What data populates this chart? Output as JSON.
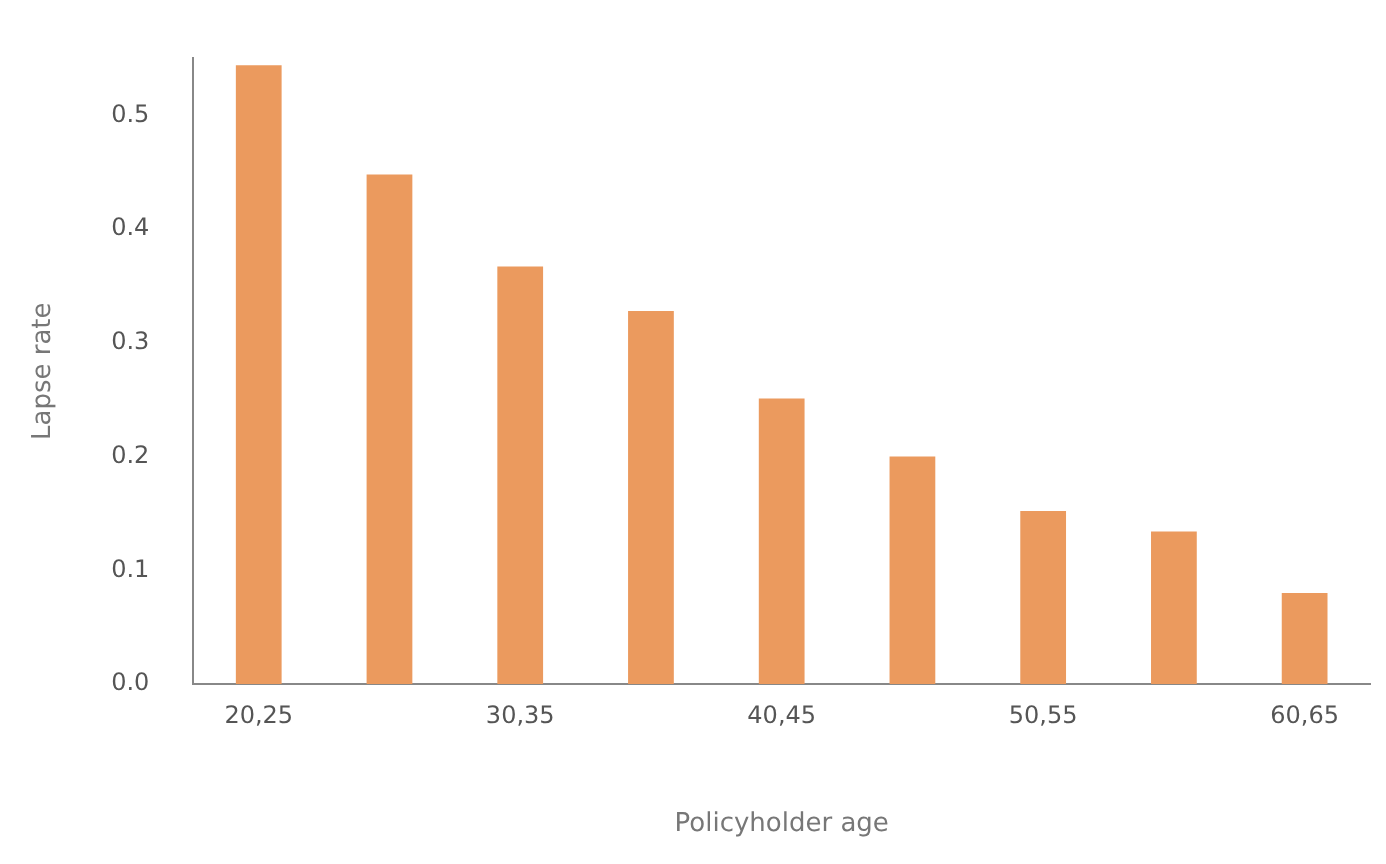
{
  "chart_data": {
    "type": "bar",
    "xlabel": "Policyholder age",
    "ylabel": "Lapse rate",
    "categories": [
      "20,25",
      null,
      "30,35",
      null,
      "40,45",
      null,
      "50,55",
      null,
      "60,65"
    ],
    "values": [
      0.544,
      0.448,
      0.367,
      0.328,
      0.251,
      0.2,
      0.152,
      0.134,
      0.08
    ],
    "color": "#eb9a5e",
    "ylim": [
      0,
      0.55
    ],
    "yticks": [
      {
        "value": 0,
        "label": "0.0"
      },
      0.1,
      0.2,
      0.3,
      0.4,
      0.5
    ],
    "grid": false,
    "legend": false
  }
}
